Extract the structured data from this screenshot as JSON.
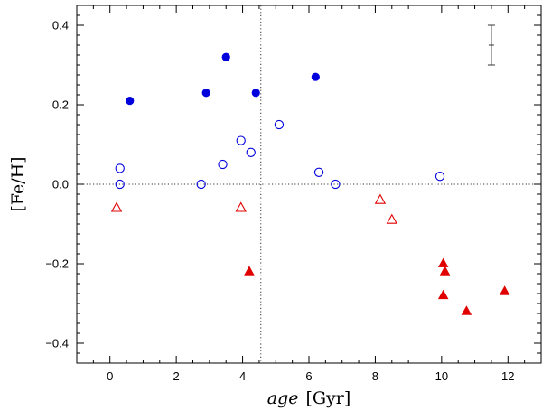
{
  "chart_data": {
    "type": "scatter",
    "title": "",
    "xlabel_italic": "age",
    "xlabel_unit": "[Gyr]",
    "ylabel": "[Fe/H]",
    "xlim": [
      -1,
      13
    ],
    "ylim": [
      -0.45,
      0.45
    ],
    "x_ticks": [
      0,
      2,
      4,
      6,
      8,
      10,
      12
    ],
    "x_tick_labels": [
      "0",
      "2",
      "4",
      "6",
      "8",
      "10",
      "12"
    ],
    "y_ticks": [
      -0.4,
      -0.2,
      0.0,
      0.2,
      0.4
    ],
    "y_tick_labels": [
      "−0.4",
      "−0.2",
      "0.0",
      "0.2",
      "0.4"
    ],
    "reference_lines": {
      "x": 4.55,
      "y": 0.0,
      "style": "dotted"
    },
    "error_bar": {
      "x": 11.5,
      "y_low": 0.3,
      "y_high": 0.4,
      "y_center": 0.35
    },
    "series": [
      {
        "name": "filled-blue-circles",
        "marker": "circle",
        "filled": true,
        "color": "#0000dd",
        "points": [
          [
            0.6,
            0.21
          ],
          [
            2.9,
            0.23
          ],
          [
            3.5,
            0.32
          ],
          [
            4.4,
            0.23
          ],
          [
            6.2,
            0.27
          ]
        ]
      },
      {
        "name": "open-blue-circles",
        "marker": "circle",
        "filled": false,
        "color": "#0000dd",
        "points": [
          [
            0.3,
            0.04
          ],
          [
            0.3,
            0.0
          ],
          [
            2.75,
            0.0
          ],
          [
            3.4,
            0.05
          ],
          [
            3.95,
            0.11
          ],
          [
            4.25,
            0.08
          ],
          [
            5.1,
            0.15
          ],
          [
            6.3,
            0.03
          ],
          [
            6.8,
            0.0
          ],
          [
            9.95,
            0.02
          ]
        ]
      },
      {
        "name": "open-red-triangles",
        "marker": "triangle",
        "filled": false,
        "color": "#e00000",
        "points": [
          [
            0.2,
            -0.06
          ],
          [
            3.95,
            -0.06
          ],
          [
            8.15,
            -0.04
          ],
          [
            8.5,
            -0.09
          ]
        ]
      },
      {
        "name": "filled-red-triangles",
        "marker": "triangle",
        "filled": true,
        "color": "#e00000",
        "points": [
          [
            4.2,
            -0.22
          ],
          [
            10.05,
            -0.2
          ],
          [
            10.1,
            -0.22
          ],
          [
            10.05,
            -0.28
          ],
          [
            10.75,
            -0.32
          ],
          [
            11.9,
            -0.27
          ]
        ]
      }
    ]
  }
}
